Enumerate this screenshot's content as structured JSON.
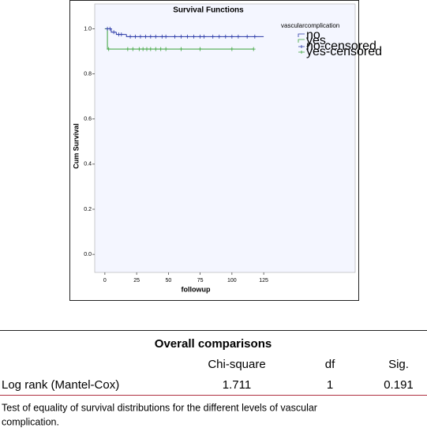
{
  "chart_data": {
    "type": "survival",
    "title": "Survival Functions",
    "xlabel": "followup",
    "ylabel": "Cum Survival",
    "legend_title": "vascularcomplication",
    "legend": "upper right",
    "xlim": [
      -8,
      197
    ],
    "ylim": [
      -0.08,
      1.11
    ],
    "xticks": [
      0,
      25,
      50,
      75,
      100,
      125
    ],
    "yticks": [
      {
        "value": 0,
        "label": "0.0"
      },
      0.2,
      0.4,
      0.6,
      0.8,
      {
        "value": 1,
        "label": "1.0"
      }
    ],
    "series": [
      {
        "name": "no",
        "color": "#2b3aa8",
        "kind": "step",
        "x": [
          0,
          5,
          9,
          17,
          125
        ],
        "values": [
          1,
          0.985,
          0.975,
          0.965,
          0.965
        ]
      },
      {
        "name": "yes",
        "color": "#3aa33a",
        "kind": "step",
        "x": [
          0,
          2,
          117
        ],
        "values": [
          1,
          0.91,
          0.91
        ]
      },
      {
        "name": "no-censored",
        "color": "#2b3aa8",
        "kind": "censored",
        "x": [
          2,
          4,
          7,
          11,
          13,
          20,
          24,
          28,
          32,
          36,
          40,
          45,
          48,
          55,
          60,
          65,
          70,
          75,
          78,
          85,
          90,
          95,
          100,
          105,
          112,
          118
        ],
        "values": [
          1,
          1,
          0.985,
          0.975,
          0.975,
          0.965,
          0.965,
          0.965,
          0.965,
          0.965,
          0.965,
          0.965,
          0.965,
          0.965,
          0.965,
          0.965,
          0.965,
          0.965,
          0.965,
          0.965,
          0.965,
          0.965,
          0.965,
          0.965,
          0.965,
          0.965
        ]
      },
      {
        "name": "yes-censored",
        "color": "#3aa33a",
        "kind": "censored",
        "x": [
          3,
          18,
          22,
          27,
          30,
          33,
          36,
          40,
          44,
          48,
          60,
          75,
          100,
          117
        ],
        "values": [
          0.91,
          0.91,
          0.91,
          0.91,
          0.91,
          0.91,
          0.91,
          0.91,
          0.91,
          0.91,
          0.91,
          0.91,
          0.91,
          0.91
        ]
      }
    ]
  },
  "table": {
    "title": "Overall comparisons",
    "headers": [
      "Chi-square",
      "df",
      "Sig."
    ],
    "rows": [
      [
        "Log rank (Mantel-Cox)",
        1.711,
        1,
        0.191
      ]
    ],
    "footnote": [
      "Test of equality of survival distributions for the different levels of vascular",
      "complication."
    ]
  }
}
